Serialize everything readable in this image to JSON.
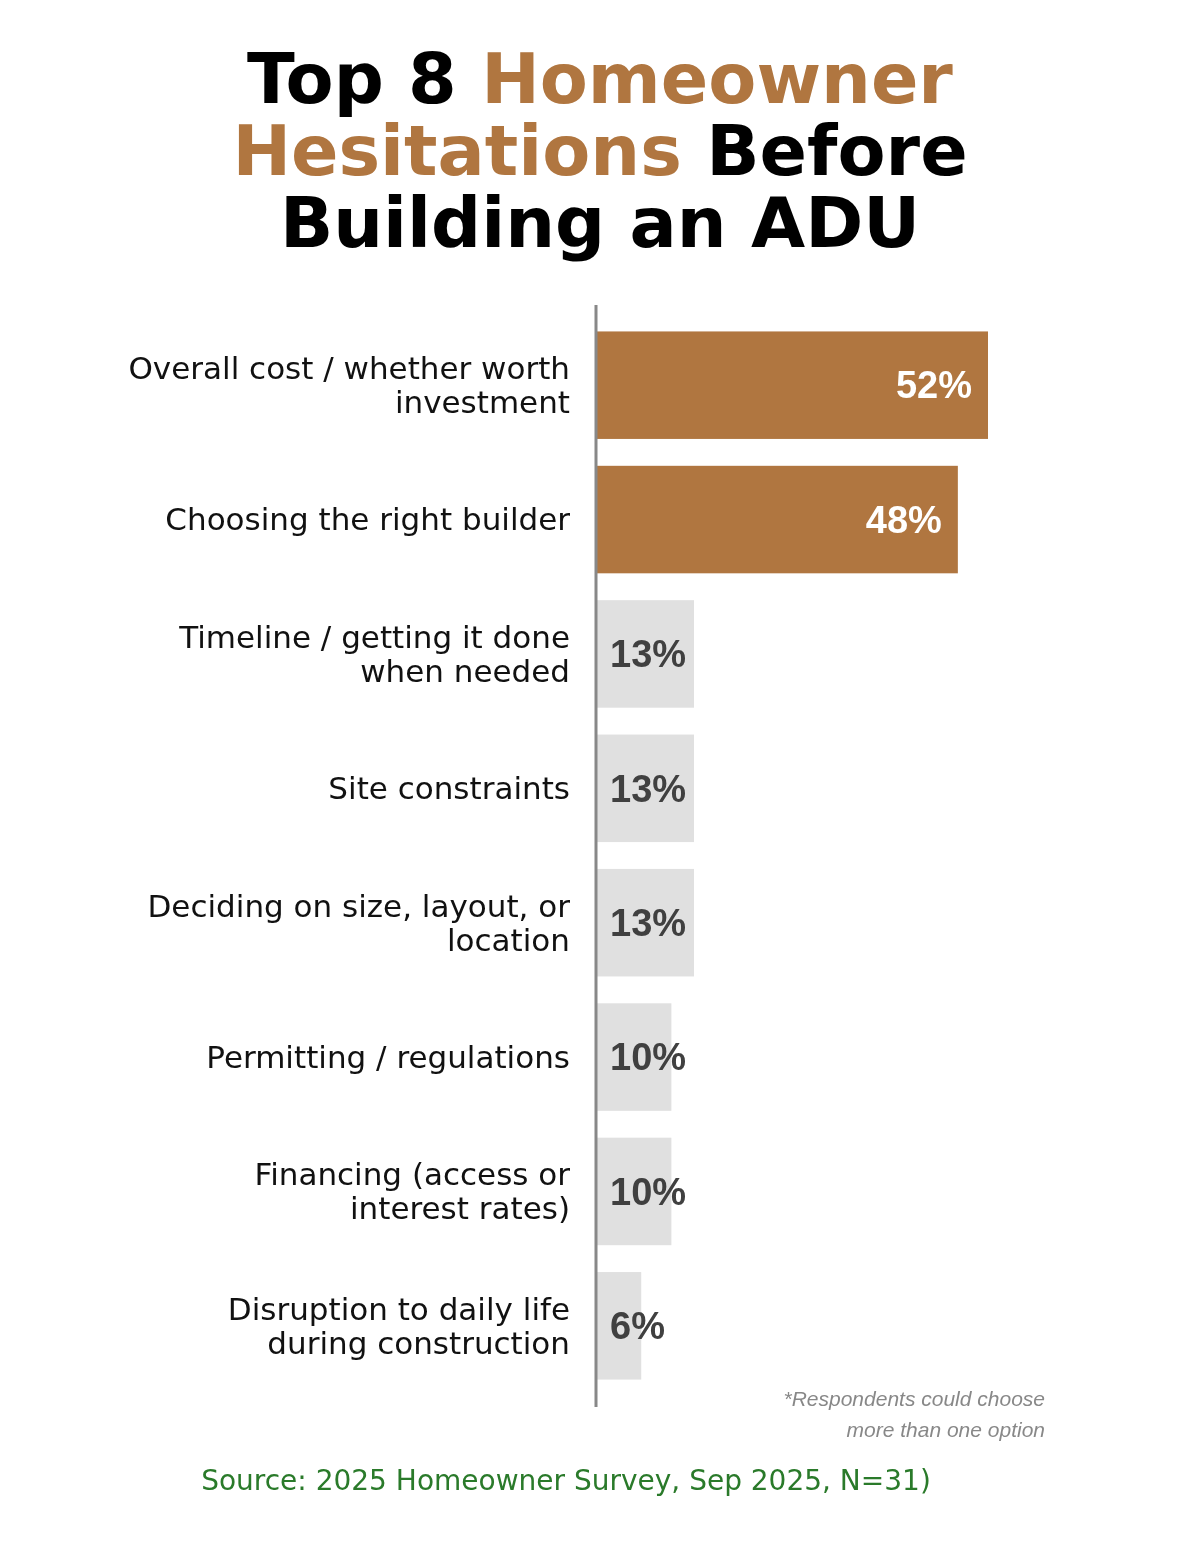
{
  "chart_data": {
    "type": "bar",
    "orientation": "horizontal",
    "title": "Top 8 Homeowner Hesitations Before Building an ADU",
    "categories": [
      "Overall cost / whether worth investment",
      "Choosing the right builder",
      "Timeline / getting it done when needed",
      "Site constraints",
      "Deciding on size, layout, or location",
      "Permitting / regulations",
      "Financing (access or interest rates)",
      "Disruption to daily life during construction"
    ],
    "values": [
      52,
      48,
      13,
      13,
      13,
      10,
      10,
      6
    ],
    "colors": [
      "#b07640",
      "#b07640",
      "#e0e0e0",
      "#e0e0e0",
      "#e0e0e0",
      "#e0e0e0",
      "#e0e0e0",
      "#e0e0e0"
    ],
    "value_labels": [
      "52%",
      "48%",
      "13%",
      "13%",
      "13%",
      "10%",
      "10%",
      "6%"
    ],
    "annotations": [
      "*Respondents could choose more than one option",
      "Source: 2025 Homeowner Survey, Sep 2025, N=31)"
    ]
  }
}
